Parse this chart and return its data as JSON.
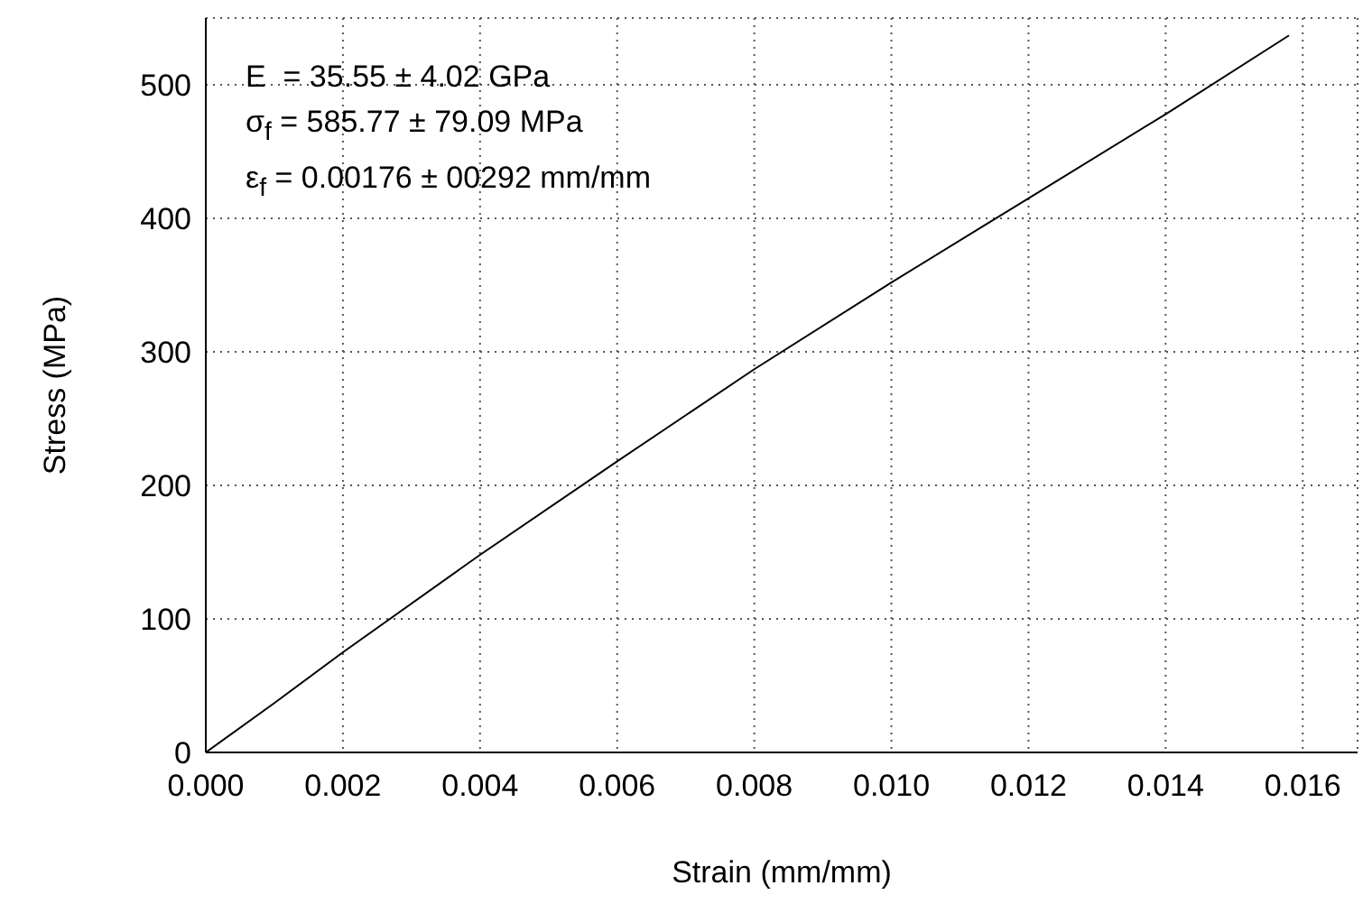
{
  "chart_data": {
    "type": "line",
    "xlabel": "Strain (mm/mm)",
    "ylabel": "Stress (MPa)",
    "annotations": [
      "E  = 35.55 ± 4.02 GPa",
      "σ$_{f}$ = 585.77 ± 79.09 MPa",
      "ε$_{f}$ = 0.00176 ± 00292 mm/mm"
    ],
    "x": [
      0,
      0.001,
      0.002,
      0.004,
      0.006,
      0.008,
      0.01,
      0.012,
      0.014,
      0.0158
    ],
    "series": [
      {
        "color": "#000000",
        "values": [
          0,
          37,
          75,
          148,
          218,
          287,
          352,
          415,
          478,
          537
        ]
      }
    ],
    "xlim": [
      0,
      0.0168
    ],
    "xticks": [
      {
        "value": 0,
        "label": "0.000"
      },
      {
        "value": 0.002,
        "label": "0.002"
      },
      {
        "value": 0.004,
        "label": "0.004"
      },
      {
        "value": 0.006,
        "label": "0.006"
      },
      {
        "value": 0.008,
        "label": "0.008"
      },
      {
        "value": 0.01,
        "label": "0.010"
      },
      {
        "value": 0.012,
        "label": "0.012"
      },
      {
        "value": 0.014,
        "label": "0.014"
      },
      {
        "value": 0.016,
        "label": "0.016"
      }
    ],
    "ylim": [
      0,
      550
    ],
    "yticks": [
      0,
      100,
      200,
      300,
      400,
      500
    ],
    "grid": true,
    "marker": "none",
    "line_style": "solid"
  }
}
